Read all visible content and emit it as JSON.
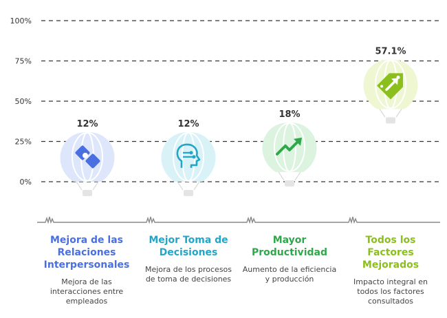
{
  "chart_data": {
    "type": "bar",
    "categories": [
      "Mejora de las Relaciones Interpersonales",
      "Mejor Toma de Decisiones",
      "Mayor Productividad",
      "Todos los Factores Mejorados"
    ],
    "values": [
      12,
      12,
      18,
      57.1
    ],
    "value_labels": [
      "12%",
      "12%",
      "18%",
      "57.1%"
    ],
    "yticks": [
      "0%",
      "25%",
      "50%",
      "75%",
      "100%"
    ],
    "ylim": [
      0,
      100
    ],
    "grid": true,
    "descriptions": [
      "Mejora de las interacciones entre empleados",
      "Mejora de los procesos de toma de decisiones",
      "Aumento de la eficiencia y producción",
      "Impacto integral en todos los factores consultados"
    ],
    "colors": [
      "#4a6fe0",
      "#22a6c8",
      "#2fa84a",
      "#8bbf1d"
    ],
    "balloon_fills": [
      "#dde6fb",
      "#d9f2f8",
      "#dcf3e0",
      "#eef7d2"
    ],
    "icons": [
      "puzzle-icon",
      "head-circuit-icon",
      "trending-up-icon",
      "tag-arrow-icon"
    ]
  }
}
